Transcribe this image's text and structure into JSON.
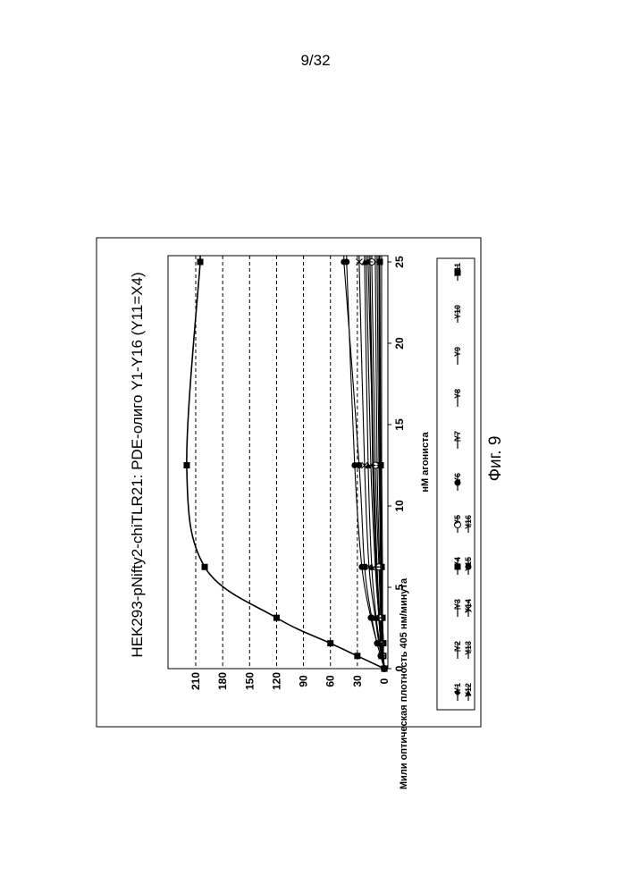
{
  "page": {
    "number": "9/32",
    "caption": "Фиг. 9"
  },
  "chart_data": {
    "type": "line",
    "title": "HEK293-pNifty2-chiTLR21: PDE-олиго Y1-Y16 (Y11=X4)",
    "xlabel": "нМ агониста",
    "ylabel": "Мили оптическая плотность 405 нм/минута",
    "xlim": [
      0,
      25
    ],
    "ylim": [
      0,
      240
    ],
    "x_ticks": [
      "0",
      "5",
      "10",
      "15",
      "20",
      "25"
    ],
    "y_ticks": [
      "0",
      "30",
      "60",
      "90",
      "120",
      "150",
      "180",
      "210"
    ],
    "grid": "horizontal dashed",
    "legend_position": "bottom",
    "x": [
      0,
      0.78,
      1.56,
      3.125,
      6.25,
      12.5,
      25
    ],
    "series": [
      {
        "name": "Y1",
        "marker": "diamond",
        "values": [
          0,
          2,
          3,
          5,
          8,
          12,
          18
        ]
      },
      {
        "name": "Y2",
        "marker": "plus",
        "values": [
          0,
          1,
          2,
          3,
          5,
          8,
          10
        ]
      },
      {
        "name": "Y3",
        "marker": "bar",
        "values": [
          0,
          1,
          2,
          3,
          4,
          6,
          8
        ]
      },
      {
        "name": "Y4",
        "marker": "square",
        "values": [
          0,
          1,
          1,
          2,
          3,
          4,
          5
        ]
      },
      {
        "name": "Y5",
        "marker": "circle-open",
        "values": [
          0,
          2,
          3,
          4,
          6,
          10,
          14
        ]
      },
      {
        "name": "Y6",
        "marker": "circle",
        "values": [
          0,
          4,
          8,
          15,
          25,
          33,
          42
        ]
      },
      {
        "name": "Y7",
        "marker": "plus",
        "values": [
          0,
          1,
          2,
          3,
          4,
          5,
          6
        ]
      },
      {
        "name": "Y8",
        "marker": "none",
        "values": [
          0,
          2,
          4,
          6,
          9,
          12,
          16
        ]
      },
      {
        "name": "Y9",
        "marker": "none",
        "values": [
          0,
          1,
          2,
          3,
          4,
          5,
          6
        ]
      },
      {
        "name": "Y10",
        "marker": "none",
        "values": [
          0,
          1,
          1,
          2,
          2,
          3,
          3
        ]
      },
      {
        "name": "Y11",
        "marker": "square",
        "values": [
          0,
          30,
          60,
          120,
          200,
          220,
          205
        ]
      },
      {
        "name": "Y12",
        "marker": "triangle",
        "values": [
          0,
          3,
          5,
          9,
          14,
          18,
          22
        ]
      },
      {
        "name": "Y13",
        "marker": "plus",
        "values": [
          0,
          2,
          4,
          6,
          9,
          13,
          16
        ]
      },
      {
        "name": "Y14",
        "marker": "x",
        "values": [
          0,
          3,
          6,
          10,
          17,
          22,
          28
        ]
      },
      {
        "name": "Y15",
        "marker": "circle-bar",
        "values": [
          0,
          4,
          8,
          14,
          22,
          28,
          45
        ]
      },
      {
        "name": "Y16",
        "marker": "plus",
        "values": [
          0,
          2,
          4,
          6,
          10,
          15,
          20
        ]
      }
    ]
  }
}
